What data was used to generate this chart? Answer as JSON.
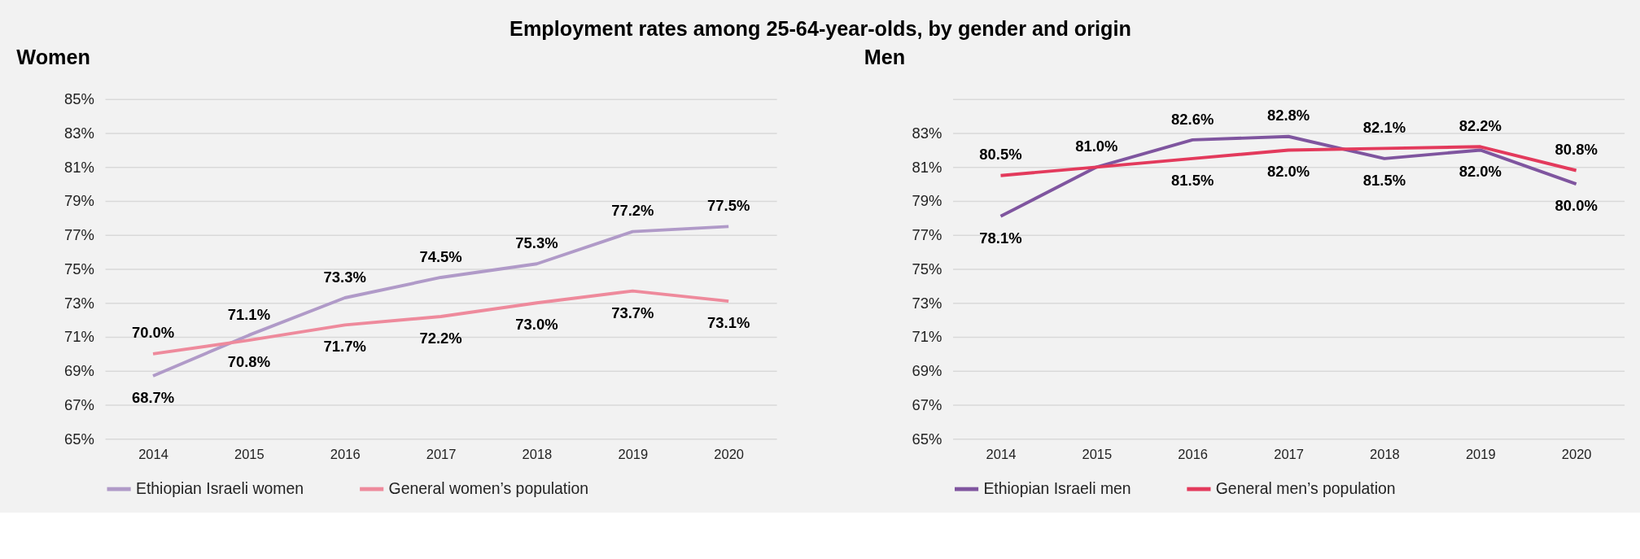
{
  "chart_data": [
    {
      "type": "line",
      "title": "Employment rates among 25-64-year-olds, by gender and origin",
      "subtitle": "Women",
      "categories": [
        "2014",
        "2015",
        "2016",
        "2017",
        "2018",
        "2019",
        "2020"
      ],
      "ylim": [
        65,
        85
      ],
      "yticks": [
        {
          "value": 65,
          "label": "65%"
        },
        {
          "value": 67,
          "label": "67%"
        },
        {
          "value": 69,
          "label": "69%"
        },
        {
          "value": 71,
          "label": "71%"
        },
        {
          "value": 73,
          "label": "73%"
        },
        {
          "value": 75,
          "label": "75%"
        },
        {
          "value": 77,
          "label": "77%"
        },
        {
          "value": 79,
          "label": "79%"
        },
        {
          "value": 81,
          "label": "81%"
        },
        {
          "value": 83,
          "label": "83%"
        },
        {
          "value": 85,
          "label": "85%"
        }
      ],
      "grid": "y",
      "legend": "bottom",
      "marker": "none",
      "line_style": "solid",
      "series": [
        {
          "name": "Ethiopian Israeli women",
          "color": "#b09ac8",
          "values": [
            68.7,
            71.1,
            73.3,
            74.5,
            75.3,
            77.2,
            77.5
          ],
          "value_labels": [
            "68.7%",
            "71.1%",
            "73.3%",
            "74.5%",
            "75.3%",
            "77.2%",
            "77.5%"
          ]
        },
        {
          "name": "General women’s population",
          "color": "#ee8a9c",
          "values": [
            70.0,
            70.8,
            71.7,
            72.2,
            73.0,
            73.7,
            73.1
          ],
          "value_labels": [
            "70.0%",
            "70.8%",
            "71.7%",
            "72.2%",
            "73.0%",
            "73.7%",
            "73.1%"
          ]
        }
      ]
    },
    {
      "type": "line",
      "subtitle": "Men",
      "categories": [
        "2014",
        "2015",
        "2016",
        "2017",
        "2018",
        "2019",
        "2020"
      ],
      "ylim": [
        65,
        85
      ],
      "yticks": [
        {
          "value": 65,
          "label": "65%"
        },
        {
          "value": 67,
          "label": "67%"
        },
        {
          "value": 69,
          "label": "69%"
        },
        {
          "value": 71,
          "label": "71%"
        },
        {
          "value": 73,
          "label": "73%"
        },
        {
          "value": 75,
          "label": "75%"
        },
        {
          "value": 77,
          "label": "77%"
        },
        {
          "value": 79,
          "label": "79%"
        },
        {
          "value": 81,
          "label": "81%"
        },
        {
          "value": 83,
          "label": "83%"
        },
        {
          "value": 85,
          "label": null
        }
      ],
      "grid": "y",
      "legend": "bottom",
      "marker": "none",
      "line_style": "solid",
      "series": [
        {
          "name": "Ethiopian Israeli men",
          "color": "#7f559f",
          "values": [
            78.1,
            81.0,
            82.6,
            82.8,
            81.5,
            82.0,
            80.0
          ],
          "value_labels": [
            "78.1%",
            "81.0%",
            "82.6%",
            "82.8%",
            "81.5%",
            "82.0%",
            "80.0%"
          ]
        },
        {
          "name": "General men’s population",
          "color": "#e33a5c",
          "values": [
            80.5,
            81.0,
            81.5,
            82.0,
            82.1,
            82.2,
            80.8
          ],
          "value_labels": [
            "80.5%",
            null,
            "81.5%",
            "82.0%",
            "82.1%",
            "82.2%",
            "80.8%"
          ]
        }
      ]
    }
  ]
}
